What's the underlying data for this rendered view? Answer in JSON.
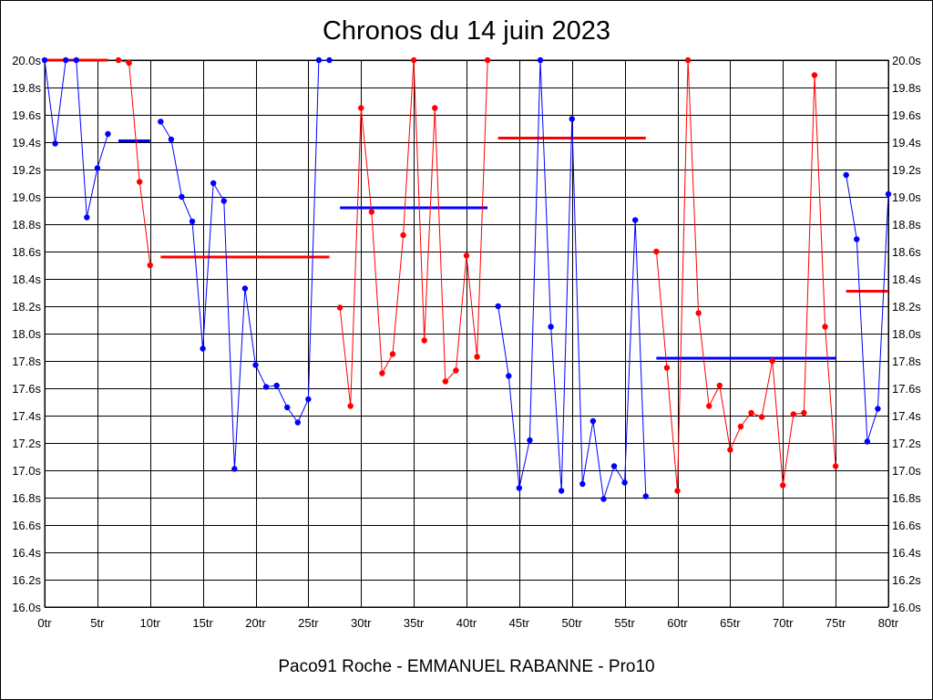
{
  "chart_data": {
    "type": "line",
    "title": "Chronos du 14 juin 2023",
    "footer": "Paco91 Roche - EMMANUEL RABANNE - Pro10",
    "xlim": [
      0,
      80
    ],
    "ylim": [
      16.0,
      20.0
    ],
    "x_ticks": [
      0,
      5,
      10,
      15,
      20,
      25,
      30,
      35,
      40,
      45,
      50,
      55,
      60,
      65,
      70,
      75,
      80
    ],
    "x_tick_labels": [
      "0tr",
      "5tr",
      "10tr",
      "15tr",
      "20tr",
      "25tr",
      "30tr",
      "35tr",
      "40tr",
      "45tr",
      "50tr",
      "55tr",
      "60tr",
      "65tr",
      "70tr",
      "75tr",
      "80tr"
    ],
    "y_ticks": [
      16.0,
      16.2,
      16.4,
      16.6,
      16.8,
      17.0,
      17.2,
      17.4,
      17.6,
      17.8,
      18.0,
      18.2,
      18.4,
      18.6,
      18.8,
      19.0,
      19.2,
      19.4,
      19.6,
      19.8,
      20.0
    ],
    "y_tick_labels": [
      "16.0s",
      "16.2s",
      "16.4s",
      "16.6s",
      "16.8s",
      "17.0s",
      "17.2s",
      "17.4s",
      "17.6s",
      "17.8s",
      "18.0s",
      "18.2s",
      "18.4s",
      "18.6s",
      "18.8s",
      "19.0s",
      "19.2s",
      "19.4s",
      "19.6s",
      "19.8s",
      "20.0s"
    ],
    "grid": true,
    "legend": "none",
    "colors": {
      "blue": "#0000ff",
      "red": "#ff0000",
      "grid": "#000000"
    },
    "series": [
      {
        "color": "blue",
        "points": [
          [
            0,
            20.0
          ],
          [
            1,
            19.39
          ],
          [
            2,
            20.0
          ],
          [
            3,
            20.0
          ],
          [
            4,
            18.85
          ],
          [
            5,
            19.21
          ],
          [
            6,
            19.46
          ]
        ]
      },
      {
        "color": "red",
        "points": [
          [
            7,
            20.0
          ],
          [
            8,
            19.98
          ],
          [
            9,
            19.11
          ],
          [
            10,
            18.5
          ]
        ]
      },
      {
        "color": "blue",
        "points": [
          [
            11,
            19.55
          ],
          [
            12,
            19.42
          ],
          [
            13,
            19.0
          ],
          [
            14,
            18.82
          ],
          [
            15,
            17.89
          ],
          [
            16,
            19.1
          ],
          [
            17,
            18.97
          ],
          [
            18,
            17.01
          ],
          [
            19,
            18.33
          ],
          [
            20,
            17.77
          ],
          [
            21,
            17.61
          ],
          [
            22,
            17.62
          ],
          [
            23,
            17.46
          ],
          [
            24,
            17.35
          ],
          [
            25,
            17.52
          ],
          [
            26,
            20.0
          ],
          [
            27,
            20.0
          ]
        ]
      },
      {
        "color": "red",
        "points": [
          [
            28,
            18.19
          ],
          [
            29,
            17.47
          ],
          [
            30,
            19.65
          ],
          [
            31,
            18.89
          ],
          [
            32,
            17.71
          ],
          [
            33,
            17.85
          ],
          [
            34,
            18.72
          ],
          [
            35,
            20.0
          ],
          [
            36,
            17.95
          ],
          [
            37,
            19.65
          ],
          [
            38,
            17.65
          ],
          [
            39,
            17.73
          ],
          [
            40,
            18.57
          ],
          [
            41,
            17.83
          ],
          [
            42,
            20.0
          ]
        ]
      },
      {
        "color": "blue",
        "points": [
          [
            43,
            18.2
          ],
          [
            44,
            17.69
          ],
          [
            45,
            16.87
          ],
          [
            46,
            17.22
          ],
          [
            47,
            20.0
          ],
          [
            48,
            18.05
          ],
          [
            49,
            16.85
          ],
          [
            50,
            19.57
          ],
          [
            51,
            16.9
          ],
          [
            52,
            17.36
          ],
          [
            53,
            16.79
          ],
          [
            54,
            17.03
          ],
          [
            55,
            16.91
          ],
          [
            56,
            18.83
          ],
          [
            57,
            16.81
          ]
        ]
      },
      {
        "color": "red",
        "points": [
          [
            58,
            18.6
          ],
          [
            59,
            17.75
          ],
          [
            60,
            16.85
          ],
          [
            61,
            20.0
          ],
          [
            62,
            18.15
          ],
          [
            63,
            17.47
          ],
          [
            64,
            17.62
          ],
          [
            65,
            17.15
          ],
          [
            66,
            17.32
          ],
          [
            67,
            17.42
          ],
          [
            68,
            17.39
          ],
          [
            69,
            17.8
          ],
          [
            70,
            16.89
          ],
          [
            71,
            17.41
          ],
          [
            72,
            17.42
          ],
          [
            73,
            19.89
          ],
          [
            74,
            18.05
          ],
          [
            75,
            17.03
          ]
        ]
      },
      {
        "color": "blue",
        "points": [
          [
            76,
            19.16
          ],
          [
            77,
            18.69
          ],
          [
            78,
            17.21
          ],
          [
            79,
            17.45
          ],
          [
            80,
            19.02
          ]
        ]
      }
    ],
    "averages": [
      {
        "color": "red",
        "x": [
          0,
          6
        ],
        "y": 20.0
      },
      {
        "color": "blue",
        "x": [
          7,
          10
        ],
        "y": 19.41
      },
      {
        "color": "red",
        "x": [
          11,
          27
        ],
        "y": 18.56
      },
      {
        "color": "blue",
        "x": [
          28,
          42
        ],
        "y": 18.92
      },
      {
        "color": "red",
        "x": [
          43,
          57
        ],
        "y": 19.43
      },
      {
        "color": "blue",
        "x": [
          58,
          75
        ],
        "y": 17.82
      },
      {
        "color": "red",
        "x": [
          76,
          80
        ],
        "y": 18.31
      }
    ]
  }
}
